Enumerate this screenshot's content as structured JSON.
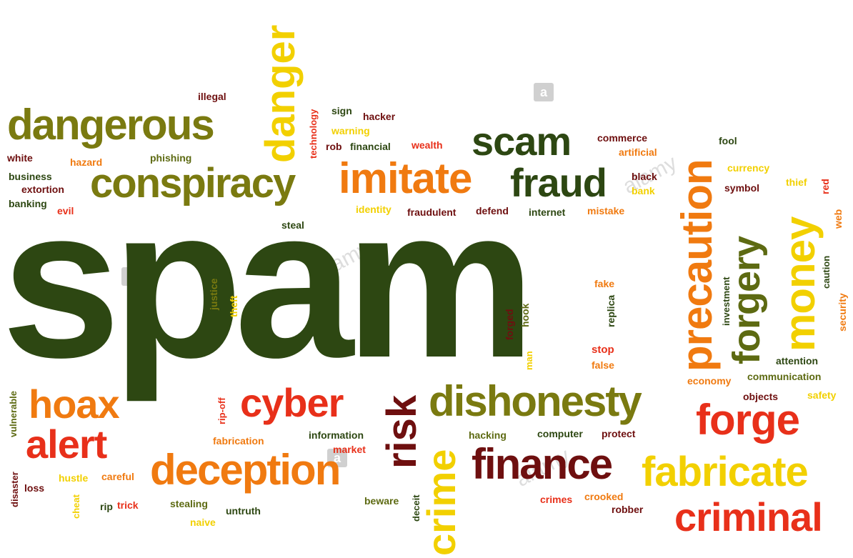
{
  "colors": {
    "dark_green": "#2d4712",
    "olive": "#7a7a10",
    "yellow": "#f2d000",
    "orange": "#f07a10",
    "red": "#e8301a",
    "maroon": "#6e0f0f",
    "olive_green": "#5d6a12"
  },
  "cloud": {
    "spam": "spam",
    "dangerous": "dangerous",
    "danger": "danger",
    "conspiracy": "conspiracy",
    "imitate": "imitate",
    "scam": "scam",
    "fraud": "fraud",
    "precaution": "precaution",
    "forgery": "forgery",
    "money": "money",
    "hoax": "hoax",
    "alert": "alert",
    "cyber": "cyber",
    "risk": "risk",
    "dishonesty": "dishonesty",
    "forge": "forge",
    "deception": "deception",
    "crime": "crime",
    "finance": "finance",
    "fabricate": "fabricate",
    "criminal": "criminal",
    "illegal": "illegal",
    "technology": "technology",
    "sign": "sign",
    "hacker": "hacker",
    "warning": "warning",
    "rob": "rob",
    "financial": "financial",
    "wealth": "wealth",
    "commerce": "commerce",
    "artificial": "artificial",
    "fool": "fool",
    "white": "white",
    "hazard": "hazard",
    "phishing": "phishing",
    "business": "business",
    "extortion": "extortion",
    "banking": "banking",
    "evil": "evil",
    "black": "black",
    "bank": "bank",
    "currency": "currency",
    "thief": "thief",
    "red": "red",
    "symbol": "symbol",
    "identity": "identity",
    "fraudulent": "fraudulent",
    "defend": "defend",
    "internet": "internet",
    "mistake": "mistake",
    "steal": "steal",
    "web": "web",
    "justice": "justice",
    "theft": "theft",
    "fake": "fake",
    "forged": "forged",
    "hook": "hook",
    "replica": "replica",
    "investment": "investment",
    "caution": "caution",
    "security": "security",
    "stop": "stop",
    "man": "man",
    "false": "false",
    "attention": "attention",
    "economy": "economy",
    "communication": "communication",
    "vulnerable": "vulnerable",
    "rip_off": "rip-off",
    "objects": "objects",
    "safety": "safety",
    "fabrication": "fabrication",
    "information": "information",
    "hacking": "hacking",
    "computer": "computer",
    "protect": "protect",
    "market": "market",
    "disaster": "disaster",
    "hustle": "hustle",
    "careful": "careful",
    "loss": "loss",
    "cheat": "cheat",
    "rip": "rip",
    "trick": "trick",
    "stealing": "stealing",
    "naive": "naive",
    "untruth": "untruth",
    "beware": "beware",
    "deceit": "deceit",
    "crimes": "crimes",
    "crooked": "crooked",
    "robber": "robber"
  },
  "watermark": {
    "glyph": "a",
    "brand": "alamy"
  }
}
